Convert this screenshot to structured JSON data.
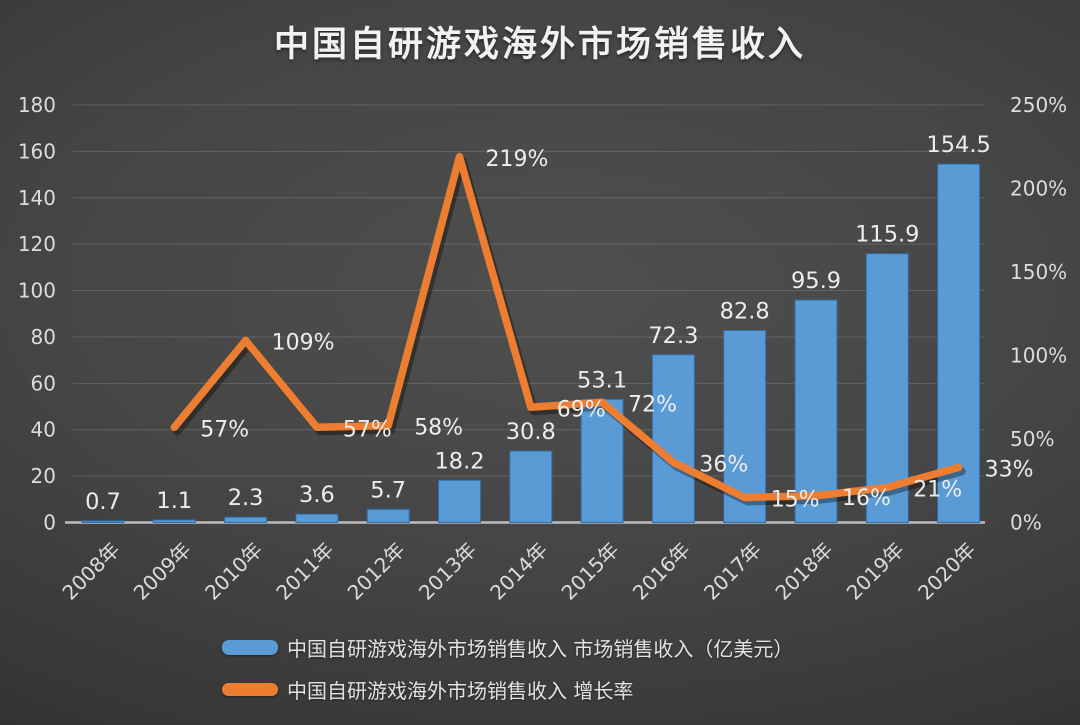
{
  "chart_data": {
    "type": "combo-bar-line",
    "title": "中国自研游戏海外市场销售收入",
    "categories": [
      "2008年",
      "2009年",
      "2010年",
      "2011年",
      "2012年",
      "2013年",
      "2014年",
      "2015年",
      "2016年",
      "2017年",
      "2018年",
      "2019年",
      "2020年"
    ],
    "series": [
      {
        "name": "中国自研游戏海外市场销售收入 市场销售收入（亿美元）",
        "type": "bar",
        "axis": "left",
        "color": "#5B9BD5",
        "border_color": "#2E6DA8",
        "values": [
          0.7,
          1.1,
          2.3,
          3.6,
          5.7,
          18.2,
          30.8,
          53.1,
          72.3,
          82.8,
          95.9,
          115.9,
          154.5
        ],
        "labels": [
          "0.7",
          "1.1",
          "2.3",
          "3.6",
          "5.7",
          "18.2",
          "30.8",
          "53.1",
          "72.3",
          "82.8",
          "95.9",
          "115.9",
          "154.5"
        ]
      },
      {
        "name": "中国自研游戏海外市场销售收入 增长率",
        "type": "line",
        "axis": "right",
        "color": "#ED7D31",
        "values": [
          null,
          57,
          109,
          57,
          58,
          219,
          69,
          72,
          36,
          15,
          16,
          21,
          33
        ],
        "labels": [
          null,
          "57%",
          "109%",
          "57%",
          "58%",
          "219%",
          "69%",
          "72%",
          "36%",
          "15%",
          "16%",
          "21%",
          "33%"
        ]
      }
    ],
    "left_axis": {
      "min": 0,
      "max": 180,
      "step": 20,
      "tick_labels": [
        "0",
        "20",
        "40",
        "60",
        "80",
        "100",
        "120",
        "140",
        "160",
        "180"
      ]
    },
    "right_axis": {
      "min": 0,
      "max": 250,
      "step": 50,
      "tick_labels": [
        "0%",
        "50%",
        "100%",
        "150%",
        "200%",
        "250%"
      ]
    },
    "grid": true,
    "legend_position": "bottom",
    "colors": {
      "text": "#e6e6e6",
      "axis_text": "#dcdcdc",
      "gridline": "#a8a8a8",
      "axis_line": "#bdbdbd"
    }
  }
}
